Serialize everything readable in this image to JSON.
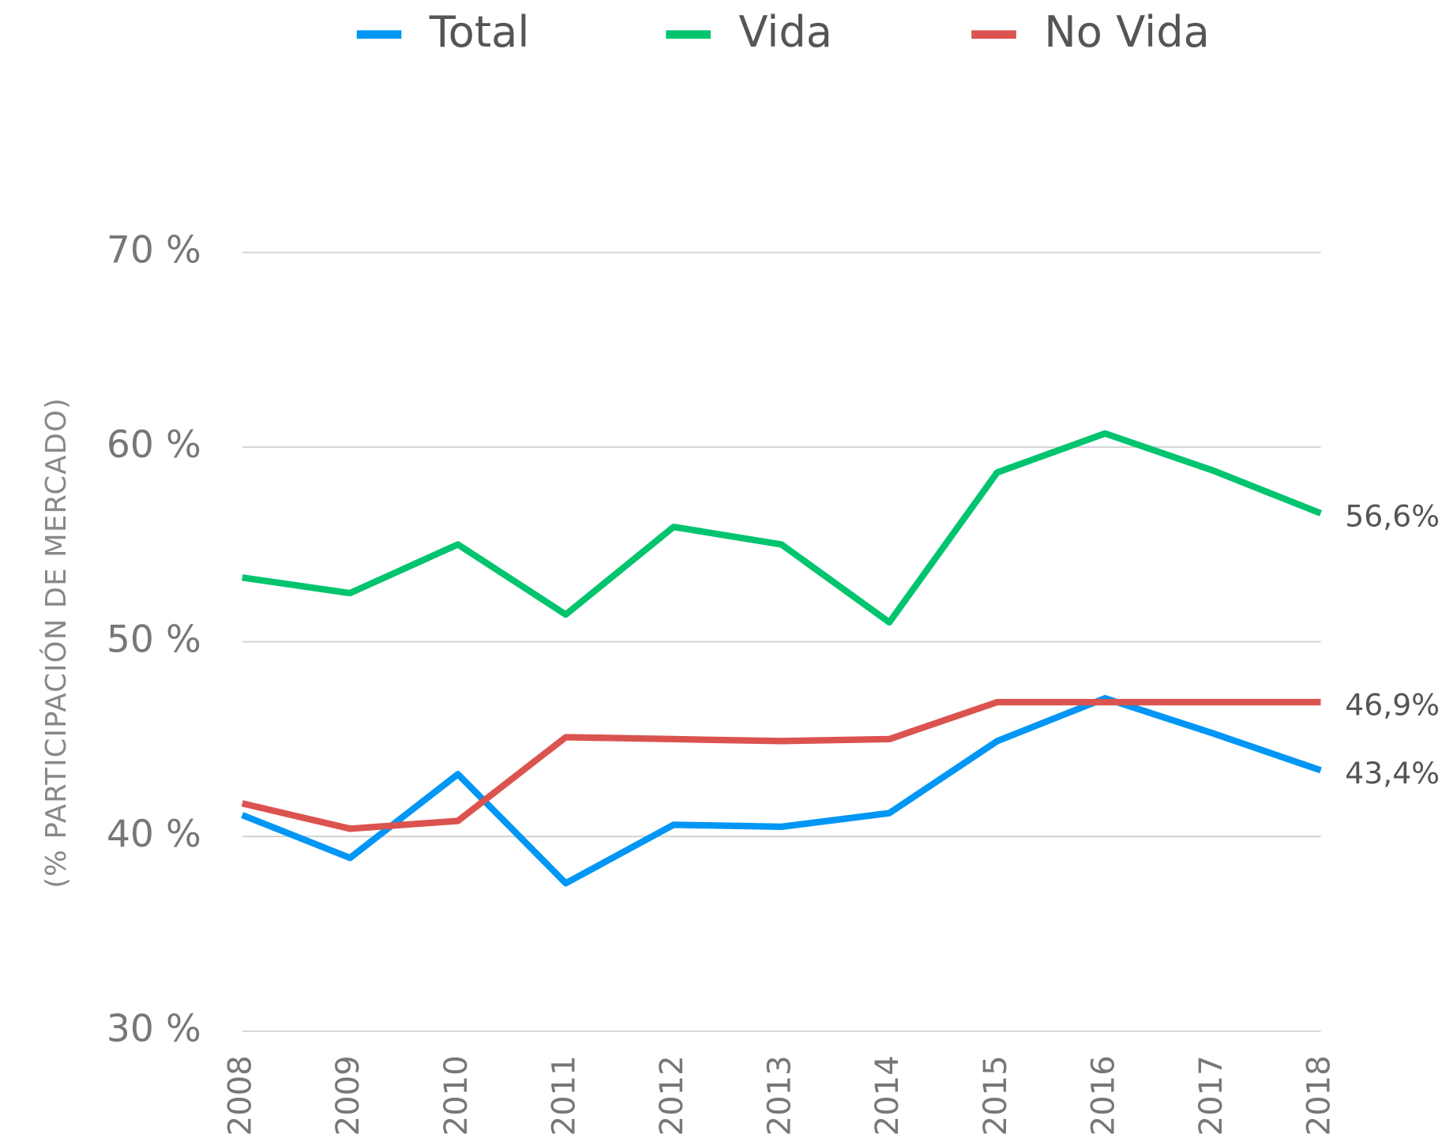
{
  "chart_data": {
    "type": "line",
    "y_label": "(% PARTICIPACIÓN DE MERCADO)",
    "categories": [
      "2008",
      "2009",
      "2010",
      "2011",
      "2012",
      "2013",
      "2014",
      "2015",
      "2016",
      "2017",
      "2018"
    ],
    "series": [
      {
        "name": "Total",
        "color": "#0096f5",
        "values": [
          41.1,
          38.9,
          43.2,
          37.6,
          40.6,
          40.5,
          41.2,
          44.9,
          47.1,
          45.3,
          43.4
        ],
        "value_labels": [
          null,
          null,
          null,
          null,
          null,
          null,
          null,
          null,
          null,
          null,
          "43,4%"
        ]
      },
      {
        "name": "Vida",
        "color": "#00c46e",
        "values": [
          53.3,
          52.5,
          55.0,
          51.4,
          55.9,
          55.0,
          51.0,
          58.7,
          60.7,
          58.8,
          56.6
        ],
        "value_labels": [
          null,
          null,
          null,
          null,
          null,
          null,
          null,
          null,
          null,
          null,
          "56,6%"
        ]
      },
      {
        "name": "No Vida",
        "color": "#db534f",
        "values": [
          41.7,
          40.4,
          40.8,
          45.1,
          45.0,
          44.9,
          45.0,
          46.9,
          46.9,
          46.9,
          46.9
        ],
        "value_labels": [
          null,
          null,
          null,
          null,
          null,
          null,
          null,
          null,
          null,
          null,
          "46,9%"
        ]
      }
    ],
    "ylim": [
      30,
      70
    ],
    "yticks": [
      {
        "value": 30,
        "label": "30 %"
      },
      {
        "value": 40,
        "label": "40 %"
      },
      {
        "value": 50,
        "label": "50 %"
      },
      {
        "value": 60,
        "label": "60 %"
      },
      {
        "value": 70,
        "label": "70 %"
      }
    ],
    "grid": true,
    "legend": "top"
  }
}
